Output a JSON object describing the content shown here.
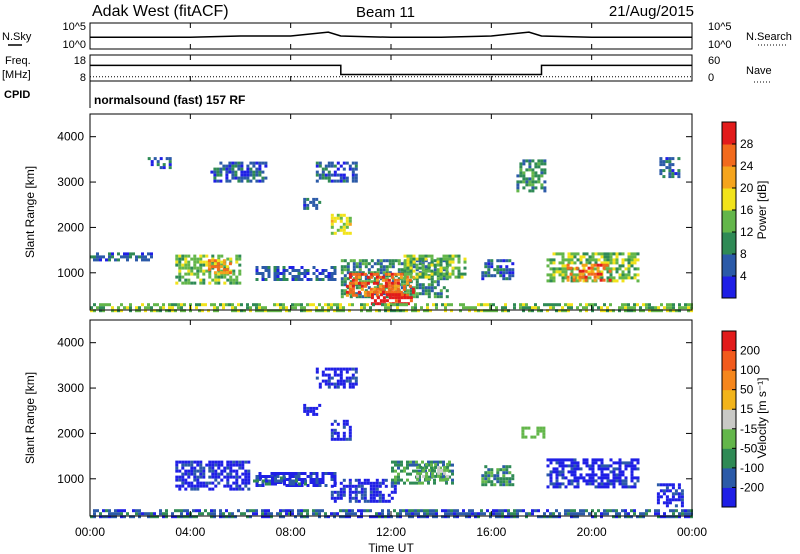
{
  "header": {
    "radar": "Adak West (fitACF)",
    "beam": "Beam 11",
    "date": "21/Aug/2015"
  },
  "nsky_panel": {
    "label_left": "N.Sky",
    "label_right": "N.Search",
    "ytick_top_left": "10^5",
    "ytick_bottom_left": "10^0",
    "ytick_top_right": "10^5",
    "ytick_bottom_right": "10^0"
  },
  "freq_panel": {
    "label_left_top": "Freq.",
    "label_left_bottom": "[MHz]",
    "label_right": "Nave",
    "ytick_top_left": "18",
    "ytick_bottom_left": "8",
    "ytick_top_right": "60",
    "ytick_bottom_right": "0"
  },
  "cpid": {
    "label": "CPID",
    "value": "normalsound (fast) 157 RF"
  },
  "xaxis": {
    "ticks": [
      "00:00",
      "04:00",
      "08:00",
      "12:00",
      "16:00",
      "20:00",
      "00:00"
    ],
    "title": "Time UT"
  },
  "power_panel": {
    "ylabel": "Slant Range [km]",
    "yticks": [
      "1000",
      "2000",
      "3000",
      "4000"
    ],
    "colorbar_title": "Power [dB]",
    "colorbar_ticks": [
      "4",
      "8",
      "12",
      "16",
      "20",
      "24",
      "28"
    ]
  },
  "velocity_panel": {
    "ylabel": "Slant Range [km]",
    "yticks": [
      "1000",
      "2000",
      "3000",
      "4000"
    ],
    "colorbar_title": "Velocity [m s⁻¹]",
    "colorbar_ticks": [
      "200",
      "100",
      "50",
      "15",
      "-15",
      "-50",
      "-100",
      "-200"
    ]
  },
  "colors": {
    "power_scale": [
      "#1f1fe6",
      "#2b5aa8",
      "#2f8a55",
      "#63b64a",
      "#f2e31b",
      "#f5a41c",
      "#f26a1c",
      "#e21b1b"
    ],
    "velocity_scale": [
      "#1f1fe6",
      "#2b5aa8",
      "#2f8a55",
      "#63b64a",
      "#c9c9c6",
      "#f2b41b",
      "#f5861c",
      "#f25a1c",
      "#e21b1b"
    ]
  },
  "chart_data": [
    {
      "type": "line",
      "name": "N.Sky / N.Search",
      "x_hours": [
        0,
        2,
        4,
        6,
        8,
        9.5,
        10,
        12,
        14,
        16,
        17.5,
        18,
        20,
        22,
        24
      ],
      "nsky_level": [
        0.45,
        0.45,
        0.45,
        0.5,
        0.5,
        0.65,
        0.5,
        0.45,
        0.45,
        0.5,
        0.65,
        0.5,
        0.45,
        0.45,
        0.45
      ],
      "xlim_hours": [
        0,
        24
      ]
    },
    {
      "type": "line",
      "name": "Freq",
      "x_hours": [
        0,
        10,
        10,
        18,
        18,
        24
      ],
      "freq_mhz": [
        14,
        14,
        10.5,
        10.5,
        14,
        14
      ],
      "nave": [
        10,
        10,
        10,
        10,
        10,
        10
      ],
      "ylim_freq": [
        8,
        18
      ],
      "ylim_nave": [
        0,
        60
      ]
    },
    {
      "type": "heatmap",
      "title": "Power [dB]",
      "ylabel": "Slant Range [km]",
      "xlabel": "Time UT",
      "xlim_hours": [
        0,
        24
      ],
      "ylim_km": [
        180,
        4500
      ],
      "colorbar_range": [
        0,
        30
      ],
      "regions": [
        {
          "t": [
            0.0,
            2.5
          ],
          "r": [
            1300,
            1450
          ],
          "level": 1
        },
        {
          "t": [
            3.4,
            6.0
          ],
          "r": [
            800,
            1400
          ],
          "level": 3
        },
        {
          "t": [
            4.7,
            5.6
          ],
          "r": [
            1000,
            1300
          ],
          "level": 5
        },
        {
          "t": [
            2.3,
            3.2
          ],
          "r": [
            3300,
            3550
          ],
          "level": 1
        },
        {
          "t": [
            4.8,
            7.0
          ],
          "r": [
            3000,
            3450
          ],
          "level": 1
        },
        {
          "t": [
            6.6,
            9.8
          ],
          "r": [
            850,
            1150
          ],
          "level": 1
        },
        {
          "t": [
            8.5,
            9.2
          ],
          "r": [
            2400,
            2650
          ],
          "level": 1
        },
        {
          "t": [
            9.0,
            10.6
          ],
          "r": [
            3000,
            3450
          ],
          "level": 1
        },
        {
          "t": [
            9.6,
            10.4
          ],
          "r": [
            1900,
            2300
          ],
          "level": 4
        },
        {
          "t": [
            10.0,
            14.2
          ],
          "r": [
            450,
            1300
          ],
          "level": 2
        },
        {
          "t": [
            10.2,
            12.9
          ],
          "r": [
            500,
            1000
          ],
          "level": 6
        },
        {
          "t": [
            11.2,
            12.8
          ],
          "r": [
            300,
            550
          ],
          "level": 7
        },
        {
          "t": [
            12.5,
            15.0
          ],
          "r": [
            900,
            1400
          ],
          "level": 3
        },
        {
          "t": [
            15.6,
            16.9
          ],
          "r": [
            900,
            1300
          ],
          "level": 1
        },
        {
          "t": [
            17.0,
            18.1
          ],
          "r": [
            2800,
            3500
          ],
          "level": 2
        },
        {
          "t": [
            18.2,
            21.8
          ],
          "r": [
            800,
            1450
          ],
          "level": 3
        },
        {
          "t": [
            19.0,
            20.7
          ],
          "r": [
            850,
            1200
          ],
          "level": 6
        },
        {
          "t": [
            22.7,
            23.5
          ],
          "r": [
            3100,
            3550
          ],
          "level": 1
        },
        {
          "t": [
            0.0,
            24.0
          ],
          "r": [
            180,
            330
          ],
          "level": 3
        }
      ]
    },
    {
      "type": "heatmap",
      "title": "Velocity [m s⁻¹]",
      "ylabel": "Slant Range [km]",
      "xlabel": "Time UT",
      "xlim_hours": [
        0,
        24
      ],
      "ylim_km": [
        180,
        4500
      ],
      "colorbar_range": [
        -200,
        200
      ],
      "regions": [
        {
          "t": [
            3.4,
            6.3
          ],
          "r": [
            800,
            1400
          ],
          "level": 0
        },
        {
          "t": [
            6.6,
            9.8
          ],
          "r": [
            850,
            1150
          ],
          "level": 0
        },
        {
          "t": [
            8.5,
            9.2
          ],
          "r": [
            2400,
            2650
          ],
          "level": 0
        },
        {
          "t": [
            9.6,
            10.4
          ],
          "r": [
            1900,
            2300
          ],
          "level": 0
        },
        {
          "t": [
            9.0,
            10.6
          ],
          "r": [
            3000,
            3450
          ],
          "level": 0
        },
        {
          "t": [
            9.6,
            12.2
          ],
          "r": [
            500,
            1000
          ],
          "level": 0
        },
        {
          "t": [
            6.5,
            8.6
          ],
          "r": [
            900,
            1050
          ],
          "level": 1
        },
        {
          "t": [
            12.0,
            14.5
          ],
          "r": [
            900,
            1400
          ],
          "level": 2
        },
        {
          "t": [
            13.0,
            14.3
          ],
          "r": [
            1000,
            1350
          ],
          "level": 3
        },
        {
          "t": [
            15.6,
            16.8
          ],
          "r": [
            900,
            1300
          ],
          "level": 2
        },
        {
          "t": [
            18.2,
            21.8
          ],
          "r": [
            800,
            1450
          ],
          "level": 0
        },
        {
          "t": [
            22.6,
            23.6
          ],
          "r": [
            400,
            900
          ],
          "level": 0
        },
        {
          "t": [
            0.0,
            24.0
          ],
          "r": [
            180,
            330
          ],
          "level": 1
        },
        {
          "t": [
            17.2,
            18.1
          ],
          "r": [
            1900,
            2150
          ],
          "level": -1
        }
      ]
    }
  ]
}
